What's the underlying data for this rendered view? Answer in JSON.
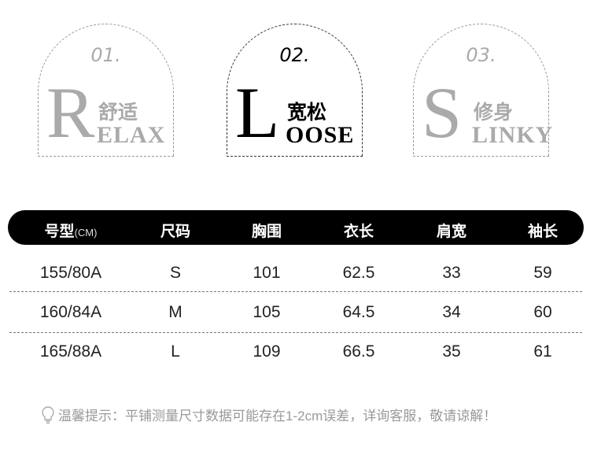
{
  "styles": [
    {
      "num": "01.",
      "letter": "R",
      "cn": "舒适",
      "rest": "ELAX",
      "active": false
    },
    {
      "num": "02.",
      "letter": "L",
      "cn": "宽松",
      "rest": "OOSE",
      "active": true
    },
    {
      "num": "03.",
      "letter": "S",
      "cn": "修身",
      "rest": "LINKY",
      "active": false
    }
  ],
  "table": {
    "headers": [
      "号型",
      "尺码",
      "胸围",
      "衣长",
      "肩宽",
      "袖长"
    ],
    "unit": "(CM)",
    "rows": [
      [
        "155/80A",
        "S",
        "101",
        "62.5",
        "33",
        "59"
      ],
      [
        "160/84A",
        "M",
        "105",
        "64.5",
        "34",
        "60"
      ],
      [
        "165/88A",
        "L",
        "109",
        "66.5",
        "35",
        "61"
      ]
    ]
  },
  "tip": {
    "icon": "lightbulb-icon",
    "text": "温馨提示：平铺测量尺寸数据可能存在1-2cm误差，详询客服，敬请谅解！"
  }
}
